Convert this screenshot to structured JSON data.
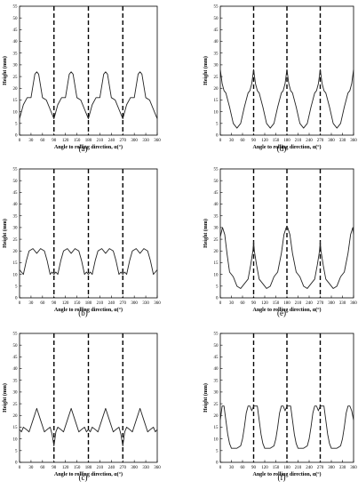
{
  "chart_data": [
    {
      "type": "line",
      "caption": "(a)",
      "xlabel": "Angle to rolling direction, α(°)",
      "ylabel": "Height (mm)",
      "xlim": [
        0,
        360
      ],
      "ylim": [
        0,
        55
      ],
      "xticks": [
        0,
        30,
        60,
        90,
        120,
        150,
        180,
        210,
        240,
        270,
        300,
        330,
        360
      ],
      "yticks": [
        0,
        5,
        10,
        15,
        20,
        25,
        30,
        35,
        40,
        45,
        50,
        55
      ],
      "vlines": [
        90,
        180,
        270
      ],
      "grid": false,
      "series": [
        {
          "x": [
            0,
            10,
            20,
            30,
            40,
            45,
            50,
            60,
            70,
            80,
            90,
            100,
            110,
            120,
            130,
            135,
            140,
            150,
            160,
            170,
            180,
            190,
            200,
            210,
            220,
            225,
            230,
            240,
            250,
            260,
            270,
            280,
            290,
            300,
            310,
            315,
            320,
            330,
            340,
            350,
            360
          ],
          "y": [
            7,
            13,
            16,
            16,
            26,
            27,
            26,
            16,
            15,
            11,
            7,
            13,
            16,
            16,
            26,
            27,
            26,
            16,
            15,
            11,
            7,
            13,
            16,
            16,
            26,
            27,
            26,
            16,
            15,
            11,
            7,
            13,
            16,
            16,
            26,
            27,
            26,
            16,
            15,
            11,
            7
          ]
        }
      ]
    },
    {
      "type": "line",
      "caption": "(b)",
      "xlabel": "Angle to rolling direction, α(°)",
      "ylabel": "Height (mm)",
      "xlim": [
        0,
        360
      ],
      "ylim": [
        0,
        55
      ],
      "xticks": [
        0,
        30,
        60,
        90,
        120,
        150,
        180,
        210,
        240,
        270,
        300,
        330,
        360
      ],
      "yticks": [
        0,
        5,
        10,
        15,
        20,
        25,
        30,
        35,
        40,
        45,
        50,
        55
      ],
      "vlines": [
        90,
        180,
        270
      ],
      "grid": false,
      "series": [
        {
          "x": [
            0,
            5,
            10,
            18,
            25,
            35,
            45,
            55,
            65,
            72,
            80,
            85,
            90,
            95,
            100,
            108,
            115,
            125,
            135,
            145,
            155,
            162,
            170,
            175,
            180,
            185,
            190,
            198,
            205,
            215,
            225,
            235,
            245,
            252,
            260,
            265,
            270,
            275,
            280,
            288,
            295,
            305,
            315,
            325,
            335,
            342,
            350,
            355,
            360
          ],
          "y": [
            12,
            11,
            10,
            16,
            20,
            21,
            19,
            21,
            20,
            16,
            10,
            11,
            10,
            11,
            10,
            16,
            20,
            21,
            19,
            21,
            20,
            16,
            10,
            11,
            10,
            11,
            10,
            16,
            20,
            21,
            19,
            21,
            20,
            16,
            10,
            11,
            10,
            11,
            10,
            16,
            20,
            21,
            19,
            21,
            20,
            16,
            10,
            11,
            12
          ]
        }
      ]
    },
    {
      "type": "line",
      "caption": "(c)",
      "xlabel": "Angle to rolling direction, α(°)",
      "ylabel": "Height (mm)",
      "xlim": [
        0,
        360
      ],
      "ylim": [
        0,
        55
      ],
      "xticks": [
        0,
        30,
        60,
        90,
        120,
        150,
        180,
        210,
        240,
        270,
        300,
        330,
        360
      ],
      "yticks": [
        0,
        5,
        10,
        15,
        20,
        25,
        30,
        35,
        40,
        45,
        50,
        55
      ],
      "vlines": [
        90,
        180,
        270
      ],
      "grid": false,
      "series": [
        {
          "x": [
            0,
            5,
            10,
            18,
            25,
            35,
            45,
            55,
            65,
            72,
            80,
            85,
            90,
            95,
            100,
            108,
            115,
            125,
            135,
            145,
            155,
            162,
            170,
            175,
            180,
            185,
            190,
            198,
            205,
            215,
            225,
            235,
            245,
            252,
            260,
            265,
            270,
            275,
            280,
            288,
            295,
            305,
            315,
            325,
            335,
            342,
            350,
            355,
            360
          ],
          "y": [
            14,
            13,
            15,
            14,
            13,
            18,
            23,
            18,
            13,
            14,
            15,
            12,
            7,
            13,
            15,
            14,
            13,
            18,
            23,
            18,
            13,
            14,
            15,
            13,
            14,
            13,
            15,
            14,
            13,
            18,
            23,
            18,
            13,
            14,
            15,
            12,
            7,
            13,
            15,
            14,
            13,
            18,
            23,
            18,
            13,
            14,
            15,
            13,
            14
          ]
        }
      ]
    },
    {
      "type": "line",
      "caption": "(d)",
      "xlabel": "Angle to rolling direction, α(°)",
      "ylabel": "Height (mm)",
      "xlim": [
        0,
        360
      ],
      "ylim": [
        0,
        55
      ],
      "xticks": [
        0,
        30,
        60,
        90,
        120,
        150,
        180,
        210,
        240,
        270,
        300,
        330,
        360
      ],
      "yticks": [
        0,
        5,
        10,
        15,
        20,
        25,
        30,
        35,
        40,
        45,
        50,
        55
      ],
      "vlines": [
        90,
        180,
        270
      ],
      "grid": false,
      "series": [
        {
          "x": [
            0,
            5,
            10,
            15,
            25,
            35,
            45,
            55,
            65,
            75,
            80,
            85,
            90,
            95,
            100,
            105,
            115,
            125,
            135,
            145,
            155,
            165,
            170,
            175,
            180,
            185,
            190,
            195,
            205,
            215,
            225,
            235,
            245,
            255,
            260,
            265,
            270,
            275,
            280,
            285,
            295,
            305,
            315,
            325,
            335,
            345,
            350,
            355,
            360
          ],
          "y": [
            28,
            22,
            19,
            18,
            12,
            5,
            3,
            5,
            12,
            18,
            19,
            22,
            28,
            22,
            19,
            18,
            12,
            5,
            3,
            5,
            12,
            18,
            19,
            22,
            28,
            22,
            19,
            18,
            12,
            5,
            3,
            5,
            12,
            18,
            19,
            22,
            28,
            22,
            19,
            18,
            12,
            5,
            3,
            5,
            12,
            18,
            19,
            22,
            28
          ]
        }
      ]
    },
    {
      "type": "line",
      "caption": "(e)",
      "xlabel": "Angle to rolling direction, α(°)",
      "ylabel": "Height (mm)",
      "xlim": [
        0,
        360
      ],
      "ylim": [
        0,
        55
      ],
      "xticks": [
        0,
        30,
        60,
        90,
        120,
        150,
        180,
        210,
        240,
        270,
        300,
        330,
        360
      ],
      "yticks": [
        0,
        5,
        10,
        15,
        20,
        25,
        30,
        35,
        40,
        45,
        50,
        55
      ],
      "vlines": [
        90,
        180,
        270
      ],
      "grid": false,
      "series": [
        {
          "x": [
            0,
            6,
            12,
            18,
            25,
            35,
            45,
            55,
            65,
            75,
            82,
            88,
            90,
            92,
            98,
            105,
            115,
            125,
            135,
            145,
            155,
            165,
            172,
            178,
            180,
            182,
            188,
            195,
            205,
            215,
            225,
            235,
            245,
            255,
            262,
            268,
            270,
            272,
            278,
            285,
            295,
            305,
            315,
            325,
            335,
            345,
            352,
            358,
            360
          ],
          "y": [
            26,
            30,
            27,
            19,
            11,
            9,
            5,
            4,
            6,
            8,
            14,
            20,
            24,
            20,
            14,
            8,
            6,
            4,
            5,
            9,
            11,
            19,
            27,
            30,
            30,
            30,
            27,
            19,
            11,
            9,
            5,
            4,
            6,
            8,
            14,
            20,
            24,
            20,
            14,
            8,
            6,
            4,
            5,
            9,
            11,
            19,
            27,
            30,
            27
          ]
        }
      ]
    },
    {
      "type": "line",
      "caption": "(f)",
      "xlabel": "Angle to rolling direction, α(°)",
      "ylabel": "Height (mm)",
      "xlim": [
        0,
        360
      ],
      "ylim": [
        0,
        55
      ],
      "xticks": [
        0,
        30,
        60,
        90,
        120,
        150,
        180,
        210,
        240,
        270,
        300,
        330,
        360
      ],
      "yticks": [
        0,
        5,
        10,
        15,
        20,
        25,
        30,
        35,
        40,
        45,
        50,
        55
      ],
      "vlines": [
        90,
        180,
        270
      ],
      "grid": false,
      "series": [
        {
          "x": [
            0,
            5,
            10,
            15,
            20,
            25,
            30,
            35,
            45,
            55,
            60,
            65,
            70,
            75,
            80,
            85,
            90,
            95,
            100,
            105,
            110,
            115,
            120,
            125,
            135,
            145,
            150,
            155,
            160,
            165,
            170,
            175,
            180,
            185,
            190,
            195,
            200,
            205,
            210,
            215,
            225,
            235,
            240,
            245,
            250,
            255,
            260,
            265,
            270,
            275,
            280,
            285,
            290,
            295,
            300,
            305,
            315,
            325,
            330,
            335,
            340,
            345,
            350,
            355,
            360
          ],
          "y": [
            18,
            24,
            24,
            18,
            12,
            8,
            6,
            6,
            6,
            7,
            10,
            15,
            21,
            24,
            24,
            22,
            24,
            24,
            24,
            18,
            12,
            8,
            6,
            6,
            6,
            7,
            10,
            15,
            21,
            24,
            24,
            22,
            24,
            24,
            24,
            18,
            12,
            8,
            6,
            6,
            6,
            7,
            10,
            15,
            21,
            24,
            24,
            22,
            24,
            24,
            24,
            18,
            12,
            8,
            6,
            6,
            6,
            7,
            10,
            15,
            21,
            24,
            24,
            22,
            18
          ]
        }
      ]
    }
  ]
}
